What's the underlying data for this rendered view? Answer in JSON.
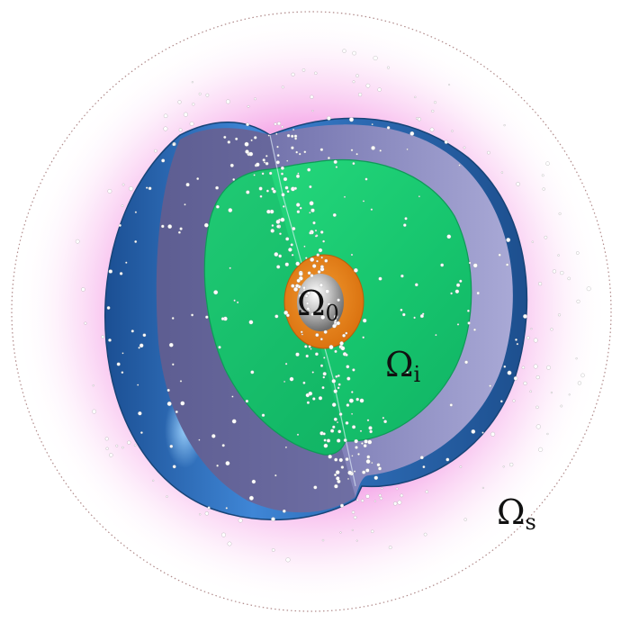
{
  "diagram": {
    "regions": [
      {
        "id": "omega-0",
        "symbol": "Ω",
        "subscript": "0",
        "color": "#e07a12"
      },
      {
        "id": "omega-i",
        "symbol": "Ω",
        "subscript": "i",
        "color": "#1fd277"
      },
      {
        "id": "omega-s",
        "symbol": "Ω",
        "subscript": "s",
        "color": "#f06ad9"
      }
    ],
    "colors": {
      "outer_shell": "#2f6fb5",
      "shell_cut_face": "#8f8fc2",
      "halo": "#f06ad9",
      "core": "#c0c0c0",
      "particles": "#ffffff"
    }
  }
}
